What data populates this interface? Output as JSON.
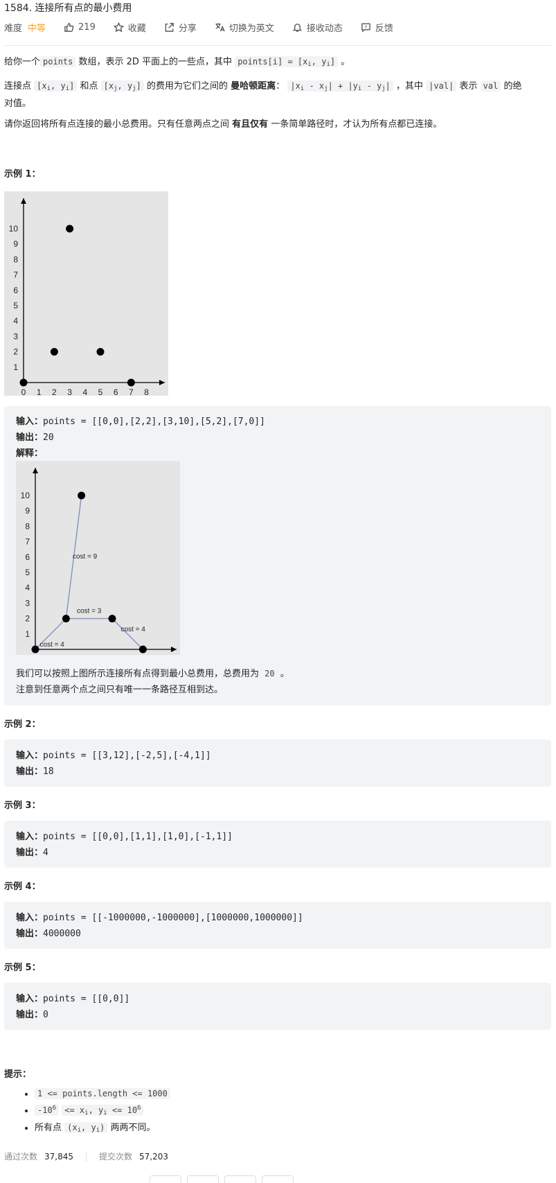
{
  "problem": {
    "title": "1584. 连接所有点的最小费用",
    "difficulty_label": "难度",
    "difficulty": "中等",
    "likes": "219",
    "favorite": "收藏",
    "share": "分享",
    "switch_lang": "切换为英文",
    "notify": "接收动态",
    "feedback": "反馈"
  },
  "desc": {
    "p1_a": "给你一个",
    "p1_code1": "points",
    "p1_b": "数组，表示 2D 平面上的一些点，其中",
    "p1_code2": "points[i] = [x",
    "p1_c": "。",
    "p2_a": "连接点",
    "p2_b": "和点",
    "p2_c": "的费用为它们之间的",
    "p2_bold": "曼哈顿距离",
    "p2_d": "：",
    "p2_e": "，其中",
    "p2_val": "|val|",
    "p2_f": "表示",
    "p2_val2": "val",
    "p2_g": "的绝",
    "p2_h": "对值。",
    "p3_a": "请你返回将所有点连接的最小总费用。只有任意两点之间",
    "p3_bold": "有且仅有",
    "p3_b": "一条简单路径时，才认为所有点都已连接。"
  },
  "examples": [
    {
      "heading": "示例 1：",
      "input_label": "输入：",
      "input": "points = [[0,0],[2,2],[3,10],[5,2],[7,0]]",
      "output_label": "输出：",
      "output": "20",
      "explain_label": "解释：",
      "explain1_a": "我们可以按照上图所示连接所有点得到最小总费用，总费用为",
      "explain1_code": "20",
      "explain1_b": "。",
      "explain2": "注意到任意两个点之间只有唯一一条路径互相到达。"
    },
    {
      "heading": "示例 2：",
      "input_label": "输入：",
      "input": "points = [[3,12],[-2,5],[-4,1]]",
      "output_label": "输出：",
      "output": "18"
    },
    {
      "heading": "示例 3：",
      "input_label": "输入：",
      "input": "points = [[0,0],[1,1],[1,0],[-1,1]]",
      "output_label": "输出：",
      "output": "4"
    },
    {
      "heading": "示例 4：",
      "input_label": "输入：",
      "input": "points = [[-1000000,-1000000],[1000000,1000000]]",
      "output_label": "输出：",
      "output": "4000000"
    },
    {
      "heading": "示例 5：",
      "input_label": "输入：",
      "input": "points = [[0,0]]",
      "output_label": "输出：",
      "output": "0"
    }
  ],
  "chart_data": [
    {
      "type": "scatter",
      "x": [
        0,
        2,
        3,
        5,
        7
      ],
      "y": [
        0,
        2,
        10,
        2,
        0
      ],
      "xticks": [
        0,
        1,
        2,
        3,
        4,
        5,
        6,
        7,
        8
      ],
      "yticks": [
        1,
        2,
        3,
        4,
        5,
        6,
        7,
        8,
        9,
        10
      ],
      "xlim": [
        0,
        8.5
      ],
      "ylim": [
        0,
        11
      ]
    },
    {
      "type": "scatter",
      "x": [
        0,
        2,
        3,
        5,
        7
      ],
      "y": [
        0,
        2,
        10,
        2,
        0
      ],
      "xticks": [
        0,
        1,
        2,
        3,
        4,
        5,
        6,
        7,
        8
      ],
      "yticks": [
        1,
        2,
        3,
        4,
        5,
        6,
        7,
        8,
        9,
        10
      ],
      "xlim": [
        0,
        8.5
      ],
      "ylim": [
        0,
        11
      ],
      "edges": [
        {
          "from": [
            0,
            0
          ],
          "to": [
            2,
            2
          ],
          "label": "cost = 4"
        },
        {
          "from": [
            2,
            2
          ],
          "to": [
            3,
            10
          ],
          "label": "cost = 9"
        },
        {
          "from": [
            2,
            2
          ],
          "to": [
            5,
            2
          ],
          "label": "cost = 3"
        },
        {
          "from": [
            5,
            2
          ],
          "to": [
            7,
            0
          ],
          "label": "cost = 4"
        }
      ]
    }
  ],
  "hints": {
    "heading": "提示：",
    "h1": "1 <= points.length <= 1000",
    "h2_a": "-10",
    "h2_exp": "6",
    "h2_b": "<= x",
    "h2_c": ", y",
    "h2_d": "<= 10",
    "h3_a": "所有点",
    "h3_b": "两两不同。"
  },
  "stats": {
    "passed_label": "通过次数",
    "passed": "37,845",
    "submitted_label": "提交次数",
    "submitted": "57,203"
  }
}
